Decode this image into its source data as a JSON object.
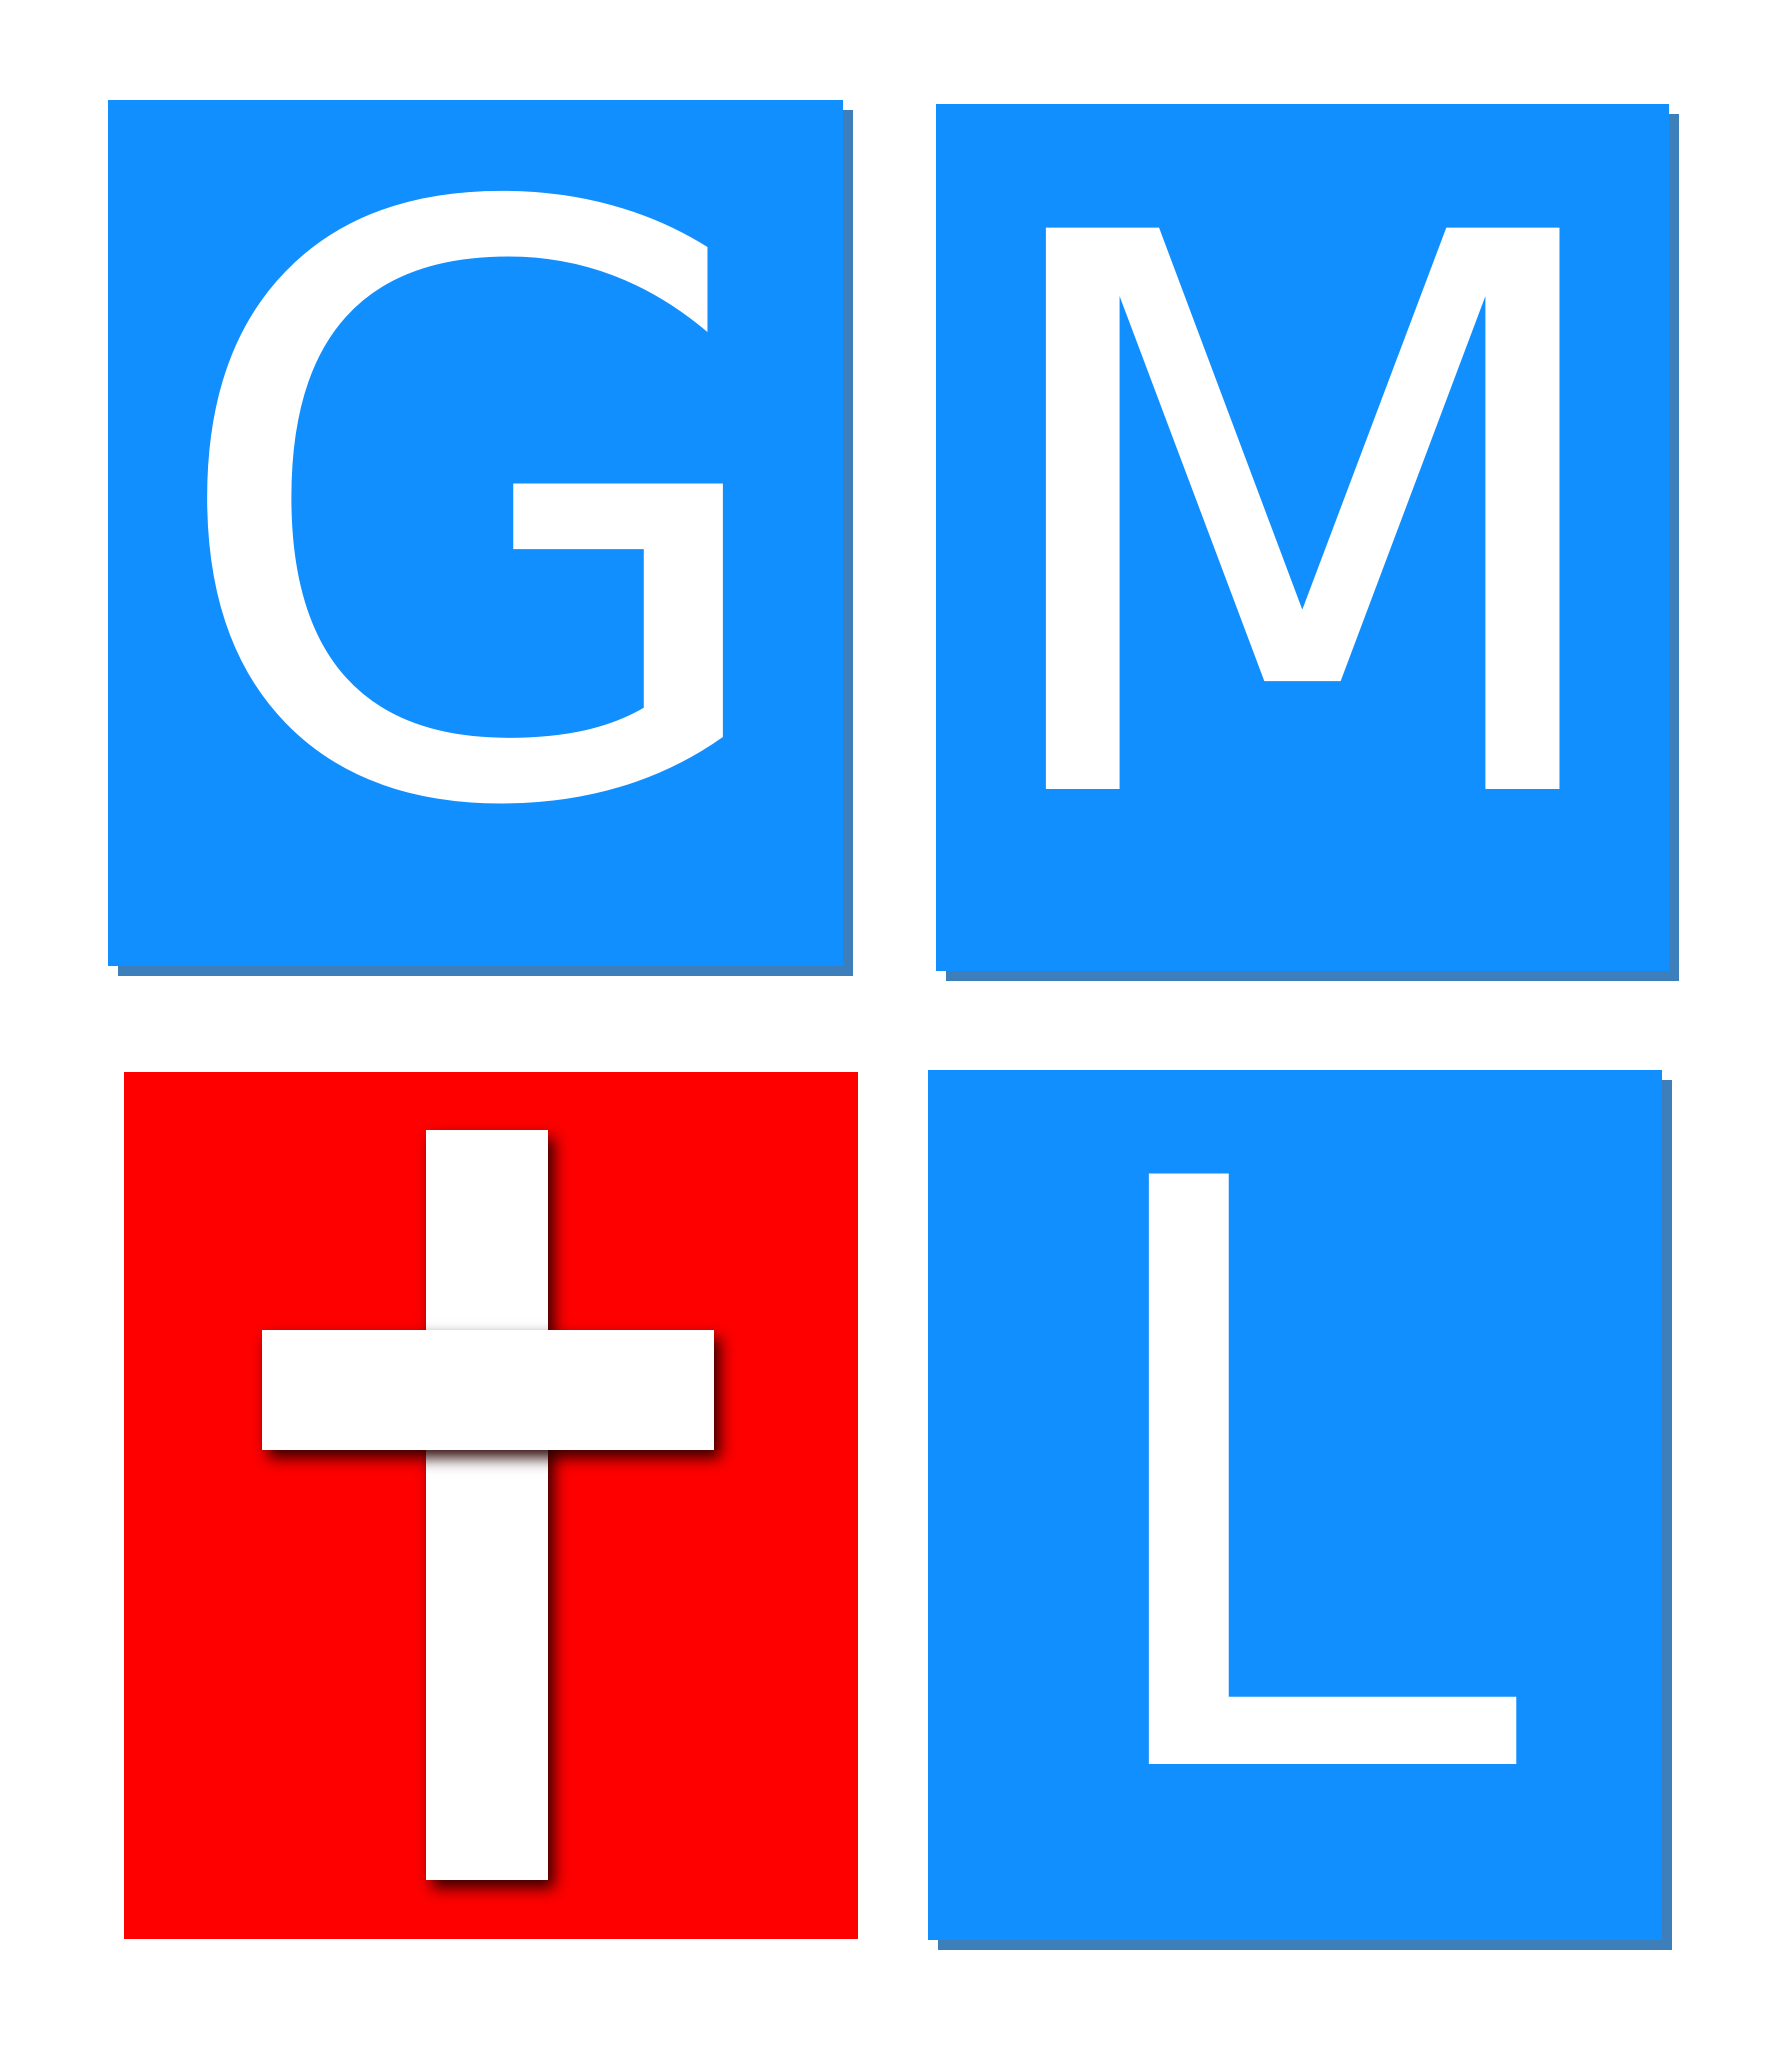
{
  "logo": {
    "tiles": [
      {
        "id": "g",
        "letter": "G",
        "color": "#118ffe"
      },
      {
        "id": "m",
        "letter": "M",
        "color": "#118ffe"
      },
      {
        "id": "cross",
        "symbol": "cross-icon",
        "color": "#fe0000"
      },
      {
        "id": "l",
        "letter": "L",
        "color": "#118ffe"
      }
    ],
    "shadow_color": "#3d7fbb",
    "letter_color": "#ffffff"
  }
}
